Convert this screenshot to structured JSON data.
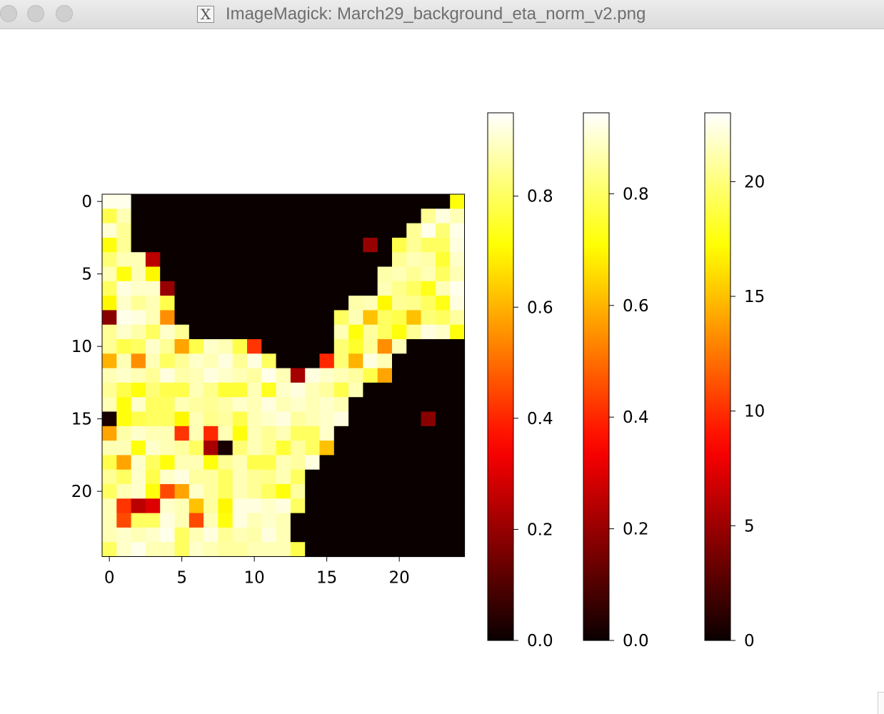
{
  "window": {
    "title": "ImageMagick: March29_background_eta_norm_v2.png",
    "icon": "x11-icon"
  },
  "chart_data": [
    {
      "type": "heatmap",
      "colormap": "hot",
      "rows": 25,
      "cols": 25,
      "vmin": 0,
      "vmax": 0.95,
      "xticks": [
        0,
        5,
        10,
        15,
        20
      ],
      "yticks": [
        0,
        5,
        10,
        15,
        20
      ],
      "values": [
        [
          0.93,
          0.93,
          0,
          0,
          0,
          0,
          0,
          0,
          0,
          0,
          0,
          0,
          0,
          0,
          0,
          0,
          0,
          0,
          0,
          0,
          0,
          0,
          0,
          0,
          0.72
        ],
        [
          0.78,
          0.88,
          0,
          0,
          0,
          0,
          0,
          0,
          0,
          0,
          0,
          0,
          0,
          0,
          0,
          0,
          0,
          0,
          0,
          0,
          0,
          0,
          0.85,
          0.92,
          0.88
        ],
        [
          0.91,
          0.85,
          0,
          0,
          0,
          0,
          0,
          0,
          0,
          0,
          0,
          0,
          0,
          0,
          0,
          0,
          0,
          0,
          0,
          0,
          0,
          0.85,
          0.93,
          0.82,
          0.93
        ],
        [
          0.72,
          0.85,
          0,
          0,
          0,
          0,
          0,
          0,
          0,
          0,
          0,
          0,
          0,
          0,
          0,
          0,
          0,
          0,
          0.2,
          0,
          0.78,
          0.85,
          0.8,
          0.8,
          0.92
        ],
        [
          0.82,
          0.88,
          0.88,
          0.25,
          0,
          0,
          0,
          0,
          0,
          0,
          0,
          0,
          0,
          0,
          0,
          0,
          0,
          0,
          0,
          0,
          0.85,
          0.88,
          0.87,
          0.76,
          0.9
        ],
        [
          0.88,
          0.72,
          0.88,
          0.7,
          0,
          0,
          0,
          0,
          0,
          0,
          0,
          0,
          0,
          0,
          0,
          0,
          0,
          0,
          0,
          0.87,
          0.88,
          0.85,
          0.88,
          0.8,
          0.88
        ],
        [
          0.8,
          0.92,
          0.9,
          0.9,
          0.2,
          0,
          0,
          0,
          0,
          0,
          0,
          0,
          0,
          0,
          0,
          0,
          0,
          0,
          0,
          0.88,
          0.84,
          0.8,
          0.73,
          0.88,
          0.93
        ],
        [
          0.7,
          0.9,
          0.85,
          0.88,
          0.78,
          0,
          0,
          0,
          0,
          0,
          0,
          0,
          0,
          0,
          0,
          0,
          0,
          0.87,
          0.88,
          0.7,
          0.85,
          0.84,
          0.8,
          0.73,
          0.92
        ],
        [
          0.18,
          0.93,
          0.92,
          0.88,
          0.55,
          0,
          0,
          0,
          0,
          0,
          0,
          0,
          0,
          0,
          0,
          0,
          0.8,
          0.88,
          0.62,
          0.8,
          0.78,
          0.62,
          0.82,
          0.8,
          0.86
        ],
        [
          0.85,
          0.9,
          0.87,
          0.8,
          0.9,
          0.85,
          0,
          0,
          0,
          0,
          0,
          0,
          0,
          0,
          0,
          0,
          0.88,
          0.72,
          0.86,
          0.8,
          0.72,
          0.85,
          0.92,
          0.9,
          0.72
        ],
        [
          0.85,
          0.78,
          0.8,
          0.9,
          0.85,
          0.58,
          0.78,
          0.9,
          0.88,
          0.78,
          0.42,
          0,
          0,
          0,
          0,
          0,
          0.82,
          0.75,
          0.85,
          0.55,
          0.88,
          0,
          0,
          0,
          0
        ],
        [
          0.6,
          0.88,
          0.55,
          0.88,
          0.8,
          0.85,
          0.9,
          0.88,
          0.92,
          0.85,
          0.92,
          0.8,
          0,
          0,
          0,
          0.4,
          0.82,
          0.6,
          0.92,
          0.88,
          0,
          0,
          0,
          0,
          0
        ],
        [
          0.88,
          0.9,
          0.88,
          0.85,
          0.92,
          0.87,
          0.88,
          0.92,
          0.9,
          0.88,
          0.86,
          0.93,
          0.88,
          0.22,
          0.92,
          0.9,
          0.88,
          0.86,
          0.78,
          0.58,
          0,
          0,
          0,
          0,
          0
        ],
        [
          0.85,
          0.78,
          0.72,
          0.82,
          0.78,
          0.78,
          0.88,
          0.84,
          0.76,
          0.76,
          0.88,
          0.74,
          0.9,
          0.92,
          0.88,
          0.86,
          0.78,
          0.88,
          0,
          0,
          0,
          0,
          0,
          0,
          0
        ],
        [
          0.88,
          0.72,
          0.9,
          0.8,
          0.8,
          0.88,
          0.86,
          0.85,
          0.87,
          0.9,
          0.88,
          0.92,
          0.88,
          0.9,
          0.88,
          0.9,
          0.88,
          0,
          0,
          0,
          0,
          0,
          0,
          0,
          0
        ],
        [
          0.02,
          0.72,
          0.78,
          0.8,
          0.8,
          0.7,
          0.88,
          0.84,
          0.86,
          0.78,
          0.88,
          0.9,
          0.92,
          0.86,
          0.88,
          0.9,
          0.92,
          0,
          0,
          0,
          0,
          0,
          0.18,
          0,
          0
        ],
        [
          0.58,
          0.87,
          0.9,
          0.88,
          0.88,
          0.42,
          0.88,
          0.4,
          0.88,
          0.72,
          0.88,
          0.85,
          0.88,
          0.8,
          0.8,
          0.9,
          0,
          0,
          0,
          0,
          0,
          0,
          0,
          0,
          0
        ],
        [
          0.88,
          0.88,
          0.72,
          0.9,
          0.88,
          0.86,
          0.8,
          0.22,
          0.02,
          0.82,
          0.88,
          0.85,
          0.76,
          0.86,
          0.8,
          0.62,
          0,
          0,
          0,
          0,
          0,
          0,
          0,
          0,
          0
        ],
        [
          0.78,
          0.58,
          0.9,
          0.8,
          0.72,
          0.88,
          0.88,
          0.72,
          0.85,
          0.88,
          0.78,
          0.78,
          0.88,
          0.86,
          0.92,
          0,
          0,
          0,
          0,
          0,
          0,
          0,
          0,
          0,
          0
        ],
        [
          0.85,
          0.8,
          0.9,
          0.78,
          0.9,
          0.92,
          0.86,
          0.86,
          0.8,
          0.88,
          0.85,
          0.84,
          0.88,
          0.8,
          0,
          0,
          0,
          0,
          0,
          0,
          0,
          0,
          0,
          0,
          0
        ],
        [
          0.8,
          0.88,
          0.9,
          0.72,
          0.45,
          0.58,
          0.9,
          0.86,
          0.8,
          0.88,
          0.85,
          0.8,
          0.72,
          0.86,
          0,
          0,
          0,
          0,
          0,
          0,
          0,
          0,
          0,
          0,
          0
        ],
        [
          0.88,
          0.42,
          0.25,
          0.3,
          0.9,
          0.88,
          0.62,
          0.86,
          0.7,
          0.92,
          0.92,
          0.9,
          0.92,
          0.8,
          0,
          0,
          0,
          0,
          0,
          0,
          0,
          0,
          0,
          0,
          0
        ],
        [
          0.88,
          0.45,
          0.8,
          0.8,
          0.92,
          0.88,
          0.45,
          0.88,
          0.72,
          0.92,
          0.88,
          0.9,
          0.88,
          0,
          0,
          0,
          0,
          0,
          0,
          0,
          0,
          0,
          0,
          0,
          0
        ],
        [
          0.88,
          0.9,
          0.88,
          0.9,
          0.93,
          0.8,
          0.88,
          0.92,
          0.85,
          0.88,
          0.87,
          0.92,
          0.88,
          0,
          0,
          0,
          0,
          0,
          0,
          0,
          0,
          0,
          0,
          0,
          0
        ],
        [
          0.8,
          0.9,
          0.93,
          0.88,
          0.88,
          0.8,
          0.9,
          0.88,
          0.86,
          0.86,
          0.88,
          0.88,
          0.88,
          0.78,
          0,
          0,
          0,
          0,
          0,
          0,
          0,
          0,
          0,
          0,
          0
        ]
      ]
    },
    {
      "type": "colorbar",
      "colormap": "hot",
      "range": [
        0,
        0.95
      ],
      "ticks": [
        0.0,
        0.2,
        0.4,
        0.6,
        0.8
      ],
      "tick_labels": [
        "0.0",
        "0.2",
        "0.4",
        "0.6",
        "0.8"
      ]
    },
    {
      "type": "colorbar",
      "colormap": "hot",
      "range": [
        0,
        0.945
      ],
      "ticks": [
        0.0,
        0.2,
        0.4,
        0.6,
        0.8
      ],
      "tick_labels": [
        "0.0",
        "0.2",
        "0.4",
        "0.6",
        "0.8"
      ]
    },
    {
      "type": "colorbar",
      "colormap": "hot",
      "range": [
        0,
        23
      ],
      "ticks": [
        0,
        5,
        10,
        15,
        20
      ],
      "tick_labels": [
        "0",
        "5",
        "10",
        "15",
        "20"
      ]
    }
  ]
}
